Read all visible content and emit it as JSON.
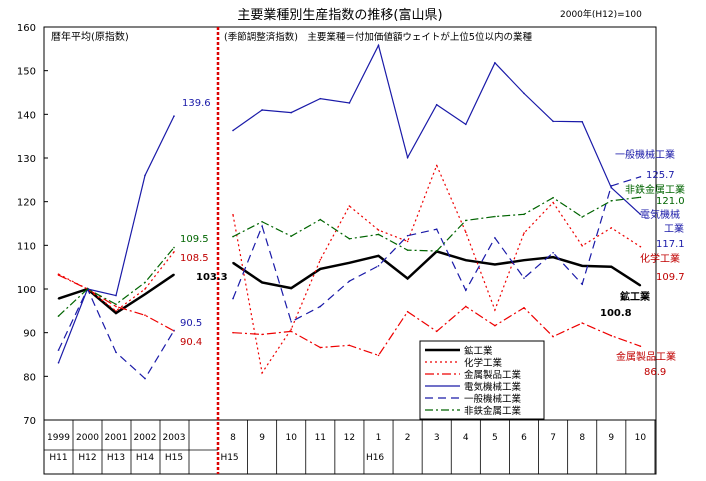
{
  "chart_data": {
    "type": "line",
    "title": "主要業種別生産指数の推移(富山県)",
    "base_note": "2000年(H12)=100",
    "ylim": [
      70,
      160
    ],
    "yticks": [
      70,
      80,
      90,
      100,
      110,
      120,
      130,
      140,
      150,
      160
    ],
    "panels": {
      "annual": {
        "label": "暦年平均(原指数)",
        "categories": [
          "1999",
          "2000",
          "2001",
          "2002",
          "2003"
        ],
        "era_labels": [
          "H11",
          "H12",
          "H13",
          "H14",
          "H15"
        ]
      },
      "monthly": {
        "label": "(季節調整済指数)　主要業種＝付加価値額ウェイトが上位5位以内の業種",
        "categories": [
          "8",
          "9",
          "10",
          "11",
          "12",
          "1",
          "2",
          "3",
          "4",
          "5",
          "6",
          "7",
          "8",
          "9",
          "10"
        ],
        "era_markers": [
          {
            "label": "H15",
            "index": 0
          },
          {
            "label": "H16",
            "index": 5
          }
        ]
      }
    },
    "series": [
      {
        "name": "鉱工業",
        "color": "#000000",
        "dash": "",
        "width": 2.5,
        "annual": [
          97.8,
          100,
          94.5,
          98.8,
          103.3
        ],
        "monthly": [
          106,
          101.5,
          100.2,
          104.6,
          106,
          107.6,
          102.4,
          108.6,
          106.6,
          105.6,
          106.6,
          107.3,
          105.3,
          105.1,
          100.8
        ],
        "end_labels": [
          "103.3",
          "100.8"
        ],
        "name_label": "鉱工業"
      },
      {
        "name": "化学工業",
        "color": "#ee0000",
        "dash": "2,3",
        "width": 1.2,
        "annual": [
          103.4,
          100,
          95,
          100,
          108.5
        ],
        "monthly": [
          117,
          80.8,
          90.8,
          106.7,
          119,
          113.5,
          110.9,
          128.3,
          113,
          95.2,
          112.8,
          119.8,
          109.9,
          114,
          109.7
        ],
        "end_labels": [
          "108.5",
          "109.7"
        ],
        "name_label": "化学工業"
      },
      {
        "name": "金属製品工業",
        "color": "#ee0000",
        "dash": "9,3,2,3",
        "width": 1.2,
        "annual": [
          103.2,
          100,
          96,
          94,
          90.4
        ],
        "monthly": [
          90,
          89.6,
          90.3,
          86.6,
          87.1,
          84.8,
          94.8,
          90.3,
          96,
          91.6,
          95.7,
          89.1,
          92.2,
          89.3,
          86.9
        ],
        "end_labels": [
          "90.4",
          "86.9"
        ],
        "name_label": "金属製品工業"
      },
      {
        "name": "電気機械工業",
        "color": "#1a1aa8",
        "dash": "",
        "width": 1.2,
        "annual": [
          83.1,
          100,
          98.5,
          126,
          139.6
        ],
        "monthly": [
          136.3,
          141,
          140.4,
          143.6,
          142.6,
          155.8,
          130.1,
          142.2,
          137.7,
          151.8,
          144.8,
          138.4,
          138.3,
          123.2,
          117.1
        ],
        "end_labels": [
          "139.6",
          "117.1"
        ],
        "name_label": "電気機械\n工業"
      },
      {
        "name": "一般機械工業",
        "color": "#1a1aa8",
        "dash": "8,5",
        "width": 1.2,
        "annual": [
          86,
          100,
          85.5,
          79.5,
          90.5
        ],
        "monthly": [
          97.8,
          114.4,
          92.5,
          96,
          101.8,
          105.3,
          112.2,
          113.7,
          99.7,
          111.7,
          102.5,
          108.3,
          101.1,
          123.6,
          125.7
        ],
        "end_labels": [
          "90.5",
          "125.7"
        ],
        "name_label": "一般機械工業"
      },
      {
        "name": "非鉄金属工業",
        "color": "#006400",
        "dash": "8,3,2,3",
        "width": 1.2,
        "annual": [
          93.8,
          100,
          96.5,
          101.5,
          109.5
        ],
        "monthly": [
          112,
          115.4,
          112.1,
          115.9,
          111.5,
          112.5,
          108.9,
          108.7,
          115.7,
          116.6,
          117.1,
          120.9,
          116.5,
          120.2,
          121.0
        ],
        "end_labels": [
          "109.5",
          "121.0"
        ],
        "name_label": "非鉄金属工業"
      }
    ],
    "legend": {
      "placement": "bottom-right",
      "entries": [
        "鉱工業",
        "化学工業",
        "金属製品工業",
        "電気機械工業",
        "一般機械工業",
        "非鉄金属工業"
      ]
    }
  }
}
